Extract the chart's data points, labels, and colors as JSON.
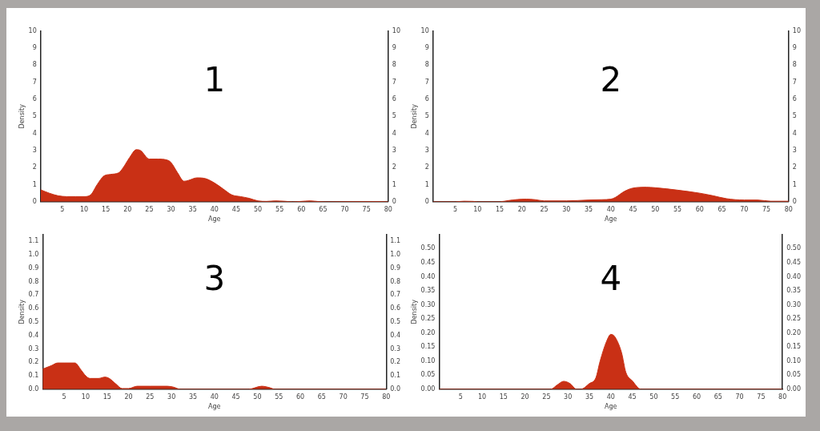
{
  "chart_data": [
    {
      "type": "area",
      "title": "1",
      "xlabel": "Age",
      "ylabel": "Density",
      "xlim": [
        0,
        80
      ],
      "xticks": [
        5,
        10,
        15,
        20,
        25,
        30,
        35,
        40,
        45,
        50,
        55,
        60,
        65,
        70,
        75,
        80
      ],
      "ylim": [
        0,
        10
      ],
      "yticks": [
        0,
        1,
        2,
        3,
        4,
        5,
        6,
        7,
        8,
        9,
        10
      ],
      "y2lim": [
        0,
        10
      ],
      "y2ticks": [
        0,
        1,
        2,
        3,
        4,
        5,
        6,
        7,
        8,
        9,
        10
      ],
      "grid": false,
      "series": [
        {
          "color": "#c93015",
          "x": [
            0,
            2,
            4,
            6,
            8,
            10,
            11.5,
            13,
            14.5,
            16,
            18,
            19,
            20.5,
            22,
            23,
            25,
            27,
            29,
            30,
            31.5,
            33,
            34,
            36,
            38,
            40,
            42,
            44,
            46,
            48,
            50,
            52,
            54,
            56,
            58,
            60,
            62,
            64,
            66,
            76,
            78,
            80
          ],
          "values": [
            0.7,
            0.5,
            0.35,
            0.3,
            0.3,
            0.3,
            0.4,
            1.0,
            1.5,
            1.6,
            1.7,
            2.0,
            2.6,
            3.05,
            3.0,
            2.5,
            2.5,
            2.45,
            2.3,
            1.7,
            1.2,
            1.25,
            1.4,
            1.35,
            1.1,
            0.75,
            0.4,
            0.3,
            0.2,
            0.05,
            0.02,
            0.05,
            0.03,
            0,
            0.02,
            0.05,
            0.01,
            0,
            0.01,
            0.01,
            0
          ]
        }
      ]
    },
    {
      "type": "area",
      "title": "2",
      "xlabel": "Age",
      "ylabel": "Density",
      "xlim": [
        0,
        80
      ],
      "xticks": [
        5,
        10,
        15,
        20,
        25,
        30,
        35,
        40,
        45,
        50,
        55,
        60,
        65,
        70,
        75,
        80
      ],
      "ylim": [
        0,
        10
      ],
      "yticks": [
        0,
        1,
        2,
        3,
        4,
        5,
        6,
        7,
        8,
        9,
        10
      ],
      "y2lim": [
        0,
        10
      ],
      "y2ticks": [
        0,
        1,
        2,
        3,
        4,
        5,
        6,
        7,
        8,
        9,
        10
      ],
      "grid": false,
      "series": [
        {
          "color": "#c93015",
          "x": [
            0,
            5,
            7,
            9,
            10,
            15,
            17,
            19,
            21,
            23,
            25,
            30,
            35,
            38,
            40,
            41,
            43,
            45,
            48,
            50,
            55,
            60,
            63,
            66,
            70,
            73,
            76,
            80
          ],
          "values": [
            0,
            0,
            0.03,
            0.02,
            0,
            0,
            0.07,
            0.13,
            0.15,
            0.12,
            0.05,
            0.05,
            0.1,
            0.12,
            0.15,
            0.25,
            0.6,
            0.8,
            0.85,
            0.82,
            0.68,
            0.5,
            0.35,
            0.18,
            0.1,
            0.1,
            0.03,
            0.03
          ]
        }
      ]
    },
    {
      "type": "area",
      "title": "3",
      "xlabel": "Age",
      "ylabel": "Density",
      "xlim": [
        0,
        80
      ],
      "xticks": [
        5,
        10,
        15,
        20,
        25,
        30,
        35,
        40,
        45,
        50,
        55,
        60,
        65,
        70,
        75,
        80
      ],
      "ylim": [
        0,
        1.15
      ],
      "yticks": [
        {
          "value": 0,
          "label": "0.0"
        },
        0.1,
        0.2,
        0.3,
        0.4,
        0.5,
        0.6,
        0.7,
        0.8,
        0.9,
        {
          "value": 1,
          "label": "1.0"
        },
        1.1
      ],
      "y2lim": [
        0,
        1.15
      ],
      "y2ticks": [
        {
          "value": 0,
          "label": "0.0"
        },
        0.1,
        0.2,
        0.3,
        0.4,
        0.5,
        0.6,
        0.7,
        0.8,
        0.9,
        {
          "value": 1,
          "label": "1.0"
        },
        1.1
      ],
      "grid": false,
      "series": [
        {
          "color": "#c93015",
          "x": [
            0,
            2,
            3.5,
            5,
            7.5,
            9,
            10,
            11,
            13,
            14.5,
            15.5,
            17,
            18.5,
            20,
            22,
            25,
            29,
            30.5,
            32,
            48,
            51,
            53,
            54,
            80
          ],
          "values": [
            0.15,
            0.175,
            0.195,
            0.195,
            0.195,
            0.14,
            0.1,
            0.08,
            0.08,
            0.09,
            0.08,
            0.04,
            0.005,
            0.005,
            0.022,
            0.022,
            0.022,
            0.015,
            0,
            0,
            0.022,
            0.01,
            0,
            0
          ]
        }
      ]
    },
    {
      "type": "area",
      "title": "4",
      "xlabel": "Age",
      "ylabel": "Density",
      "xlim": [
        0,
        80
      ],
      "xticks": [
        5,
        10,
        15,
        20,
        25,
        30,
        35,
        40,
        45,
        50,
        55,
        60,
        65,
        70,
        75,
        80
      ],
      "ylim": [
        0,
        0.55
      ],
      "yticks": [
        {
          "value": 0,
          "label": "0.00"
        },
        {
          "value": 0.05,
          "label": "0.05"
        },
        {
          "value": 0.1,
          "label": "0.10"
        },
        {
          "value": 0.15,
          "label": "0.15"
        },
        {
          "value": 0.2,
          "label": "0.20"
        },
        {
          "value": 0.25,
          "label": "0.25"
        },
        {
          "value": 0.3,
          "label": "0.30"
        },
        {
          "value": 0.35,
          "label": "0.35"
        },
        {
          "value": 0.4,
          "label": "0.40"
        },
        {
          "value": 0.45,
          "label": "0.45"
        },
        {
          "value": 0.5,
          "label": "0.50"
        }
      ],
      "y2lim": [
        0,
        0.55
      ],
      "y2ticks": [
        {
          "value": 0,
          "label": "0.00"
        },
        {
          "value": 0.05,
          "label": "0.05"
        },
        {
          "value": 0.1,
          "label": "0.10"
        },
        {
          "value": 0.15,
          "label": "0.15"
        },
        {
          "value": 0.2,
          "label": "0.20"
        },
        {
          "value": 0.25,
          "label": "0.25"
        },
        {
          "value": 0.3,
          "label": "0.30"
        },
        {
          "value": 0.35,
          "label": "0.35"
        },
        {
          "value": 0.4,
          "label": "0.40"
        },
        {
          "value": 0.45,
          "label": "0.45"
        },
        {
          "value": 0.5,
          "label": "0.50"
        }
      ],
      "grid": false,
      "series": [
        {
          "color": "#c93015",
          "x": [
            0,
            26,
            27.5,
            29,
            30.5,
            32,
            33,
            35,
            36.5,
            37.5,
            39,
            40,
            41,
            42.5,
            43.5,
            45,
            47,
            80
          ],
          "values": [
            0,
            0,
            0.015,
            0.028,
            0.02,
            0,
            0,
            0.02,
            0.04,
            0.1,
            0.17,
            0.195,
            0.185,
            0.13,
            0.06,
            0.03,
            0,
            0
          ]
        }
      ]
    }
  ]
}
